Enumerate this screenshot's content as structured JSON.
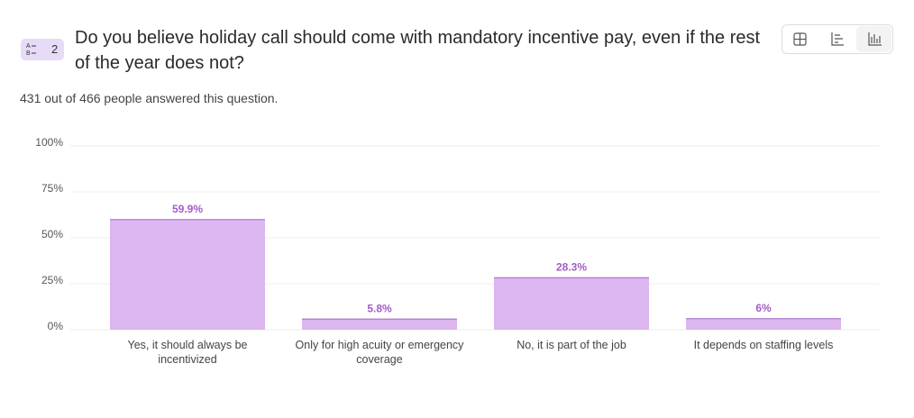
{
  "question_number": "2",
  "chart_data": {
    "type": "bar",
    "title": "Do you believe holiday call should come with mandatory incentive pay, even if the rest of the year does not?",
    "subtitle": "431 out of 466 people answered this question.",
    "categories": [
      "Yes, it should always be incentivized",
      "Only for high acuity or emergency coverage",
      "No, it is part of the job",
      "It depends on staffing levels"
    ],
    "values": [
      59.9,
      5.8,
      28.3,
      6
    ],
    "value_labels": [
      "59.9%",
      "5.8%",
      "28.3%",
      "6%"
    ],
    "color": "#dcb6f0",
    "ylim": [
      0,
      100
    ],
    "yticks": [
      {
        "value": 0,
        "label": "0%"
      },
      {
        "value": 25,
        "label": "25%"
      },
      {
        "value": 50,
        "label": "50%"
      },
      {
        "value": 75,
        "label": "75%"
      },
      {
        "value": 100,
        "label": "100%"
      }
    ],
    "grid": true
  }
}
